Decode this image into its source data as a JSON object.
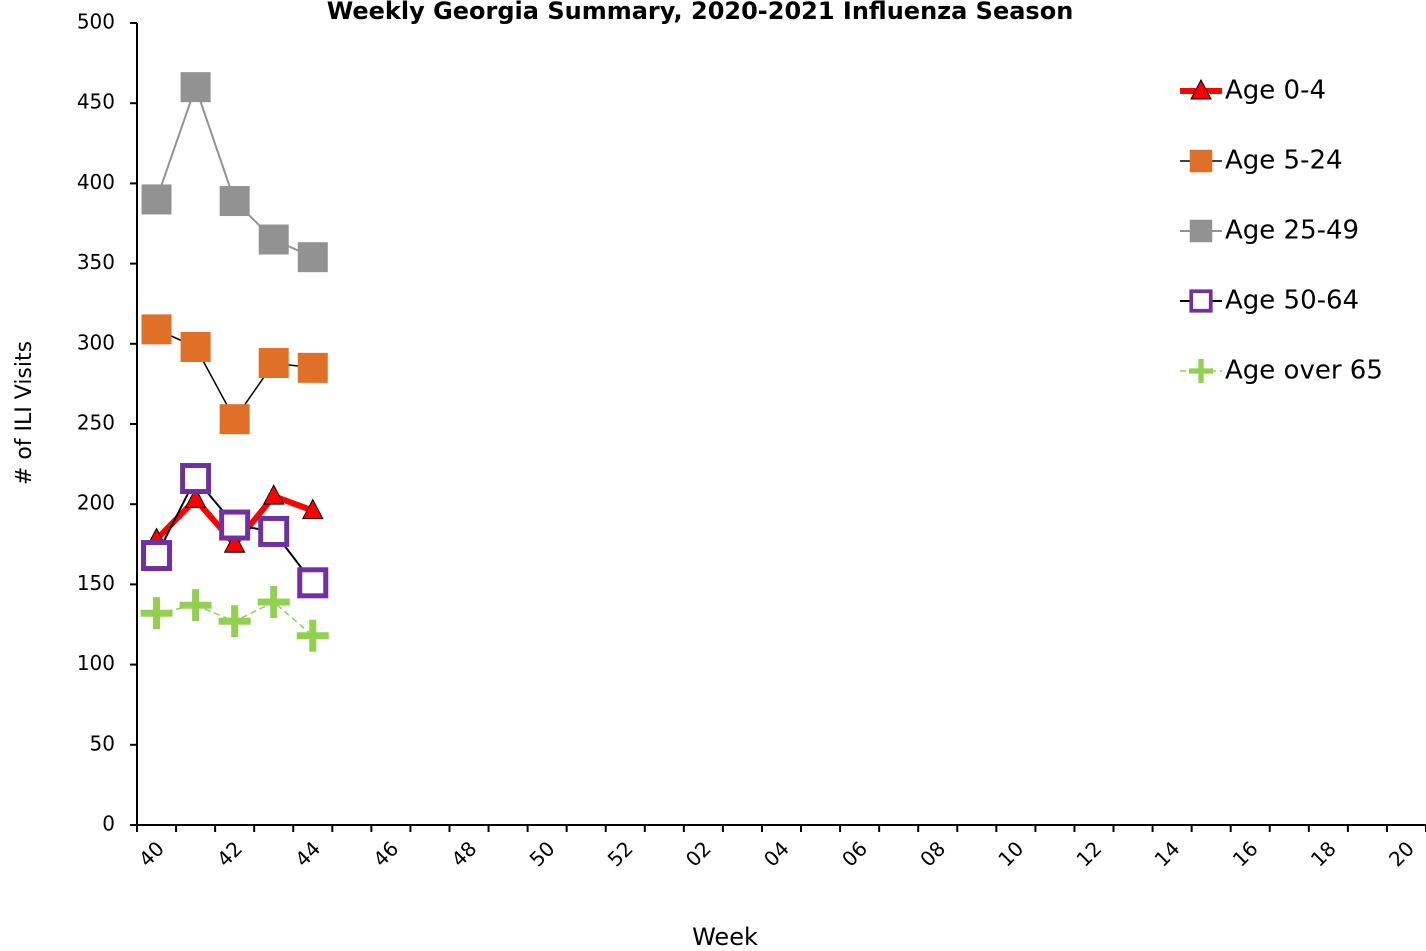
{
  "chart_data": {
    "type": "line",
    "title": "Weekly Georgia Summary, 2020-2021 Influenza Season",
    "x_label": "Week",
    "y_label": "# of ILI Visits",
    "categories": [
      "40",
      null,
      "42",
      null,
      "44",
      null,
      "46",
      null,
      "48",
      null,
      "50",
      null,
      "52",
      null,
      "02",
      null,
      "04",
      null,
      "06",
      null,
      "08",
      null,
      "10",
      null,
      "12",
      null,
      "14",
      null,
      "16",
      null,
      "18",
      null,
      "20"
    ],
    "ylim": [
      0,
      500
    ],
    "yticks": [
      0,
      50,
      100,
      150,
      200,
      250,
      300,
      350,
      400,
      450,
      500
    ],
    "legend": "right",
    "series": [
      {
        "name": "Age 0-4",
        "color": "#ff0000",
        "line_color": "#ff0000",
        "line_width": 6,
        "line_style": "solid",
        "marker": "triangle",
        "values": [
          178,
          203,
          175,
          205,
          196,
          null,
          null,
          null,
          null,
          null,
          null,
          null,
          null,
          null,
          null,
          null,
          null,
          null,
          null,
          null,
          null,
          null,
          null,
          null,
          null,
          null,
          null,
          null,
          null,
          null,
          null,
          null,
          null
        ]
      },
      {
        "name": "Age 5-24",
        "color": "#e07028",
        "line_color": "#000000",
        "line_width": 1.5,
        "line_style": "solid",
        "marker": "square",
        "values": [
          309,
          298,
          253,
          288,
          285,
          null,
          null,
          null,
          null,
          null,
          null,
          null,
          null,
          null,
          null,
          null,
          null,
          null,
          null,
          null,
          null,
          null,
          null,
          null,
          null,
          null,
          null,
          null,
          null,
          null,
          null,
          null,
          null
        ]
      },
      {
        "name": "Age 25-49",
        "color": "#929292",
        "line_color": "#929292",
        "line_width": 2,
        "line_style": "solid",
        "marker": "square",
        "values": [
          390,
          460,
          389,
          365,
          354,
          null,
          null,
          null,
          null,
          null,
          null,
          null,
          null,
          null,
          null,
          null,
          null,
          null,
          null,
          null,
          null,
          null,
          null,
          null,
          null,
          null,
          null,
          null,
          null,
          null,
          null,
          null,
          null
        ]
      },
      {
        "name": "Age 50-64",
        "color": "#7030a0",
        "line_color": "#000000",
        "line_width": 2,
        "line_style": "solid",
        "marker": "open-square",
        "values": [
          168,
          216,
          187,
          183,
          151,
          null,
          null,
          null,
          null,
          null,
          null,
          null,
          null,
          null,
          null,
          null,
          null,
          null,
          null,
          null,
          null,
          null,
          null,
          null,
          null,
          null,
          null,
          null,
          null,
          null,
          null,
          null,
          null
        ]
      },
      {
        "name": "Age over 65",
        "color": "#92d050",
        "line_color": "#92d050",
        "line_width": 1.5,
        "line_style": "dashed",
        "marker": "plus",
        "values": [
          132,
          137,
          127,
          139,
          118,
          null,
          null,
          null,
          null,
          null,
          null,
          null,
          null,
          null,
          null,
          null,
          null,
          null,
          null,
          null,
          null,
          null,
          null,
          null,
          null,
          null,
          null,
          null,
          null,
          null,
          null,
          null,
          null
        ]
      }
    ]
  }
}
